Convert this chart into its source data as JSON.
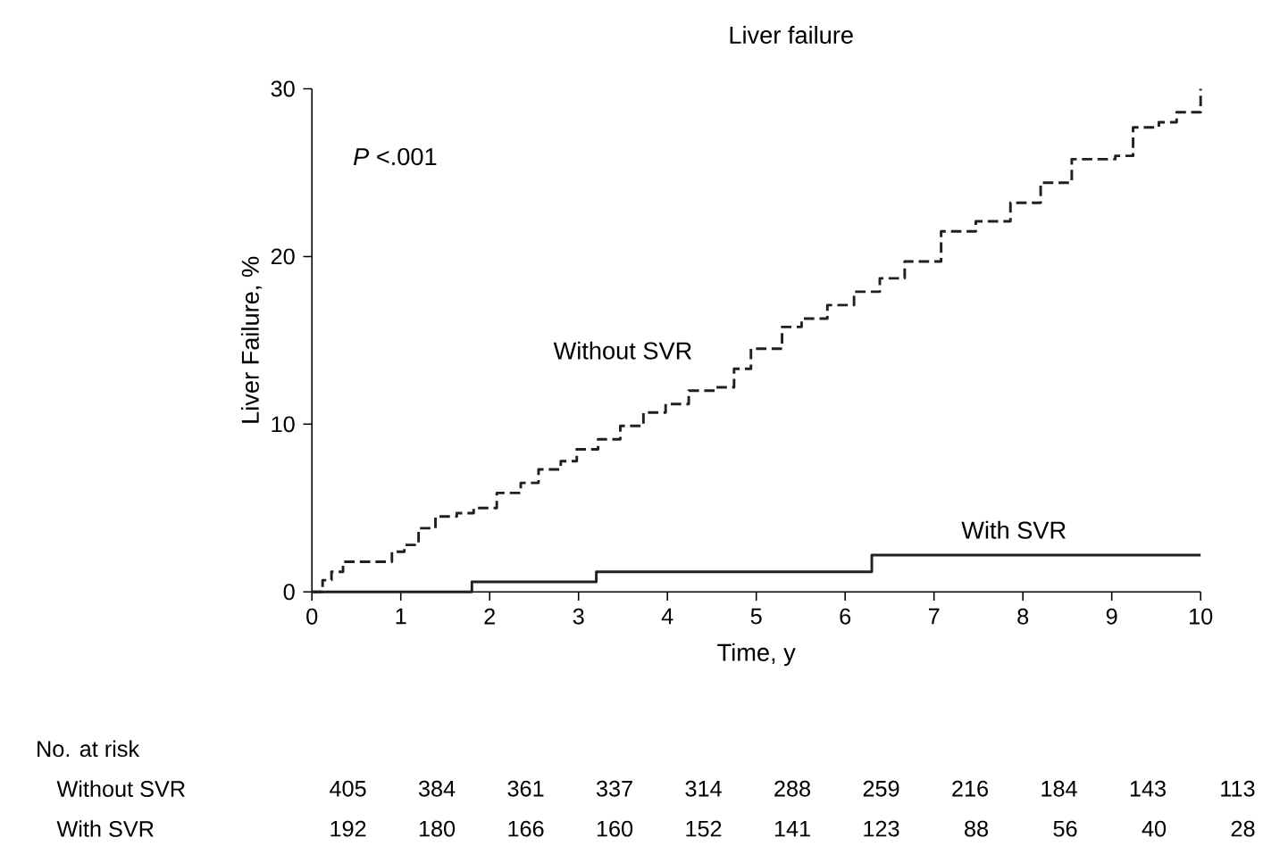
{
  "chart_data": {
    "type": "step",
    "title": "Liver failure",
    "xlabel": "Time, y",
    "ylabel": "Liver Failure, %",
    "xlim": [
      0,
      10
    ],
    "ylim": [
      0,
      30
    ],
    "xticks": [
      0,
      1,
      2,
      3,
      4,
      5,
      6,
      7,
      8,
      9,
      10
    ],
    "yticks": [
      0,
      10,
      20,
      30
    ],
    "grid": false,
    "legend": false,
    "marker": "none",
    "series": [
      {
        "name": "Without SVR",
        "color": "#231f20",
        "line_style": "dashed",
        "x": [
          0,
          0.12,
          0.22,
          0.35,
          0.71,
          0.9,
          1.04,
          1.2,
          1.39,
          1.63,
          1.82,
          2.08,
          2.08,
          2.08,
          2.35,
          2.55,
          2.8,
          2.98,
          3.22,
          3.47,
          3.73,
          3.98,
          4.24,
          4.55,
          4.75,
          4.94,
          5.29,
          5.51,
          5.8,
          6.1,
          6.39,
          6.67,
          7.08,
          7.47,
          7.86,
          8.2,
          8.55,
          9.04,
          9.24,
          9.53,
          9.73,
          10
        ],
        "values": [
          0,
          0.7,
          1.2,
          1.8,
          1.8,
          2.4,
          2.8,
          3.8,
          4.5,
          4.7,
          5.0,
          5.9,
          5.9,
          5.9,
          6.5,
          7.3,
          7.8,
          8.5,
          9.1,
          9.9,
          10.7,
          11.2,
          12.0,
          12.2,
          13.3,
          14.5,
          15.8,
          16.3,
          17.1,
          17.9,
          18.7,
          19.7,
          21.5,
          22.1,
          23.2,
          24.4,
          25.8,
          26.0,
          27.7,
          28.0,
          28.6,
          30.0
        ]
      },
      {
        "name": "With SVR",
        "color": "#231f20",
        "line_style": "solid",
        "x": [
          0,
          1.8,
          3.2,
          6.3,
          10
        ],
        "values": [
          0,
          0.6,
          1.2,
          2.2,
          2.2
        ]
      }
    ],
    "annotations": [
      "*P* <.001",
      "No. at risk",
      "405",
      "384",
      "361",
      "337",
      "314",
      "288",
      "259",
      "216",
      "184",
      "143",
      "113",
      "192",
      "180",
      "166",
      "160",
      "152",
      "141",
      "123",
      "88",
      "56",
      "40",
      "28"
    ]
  }
}
